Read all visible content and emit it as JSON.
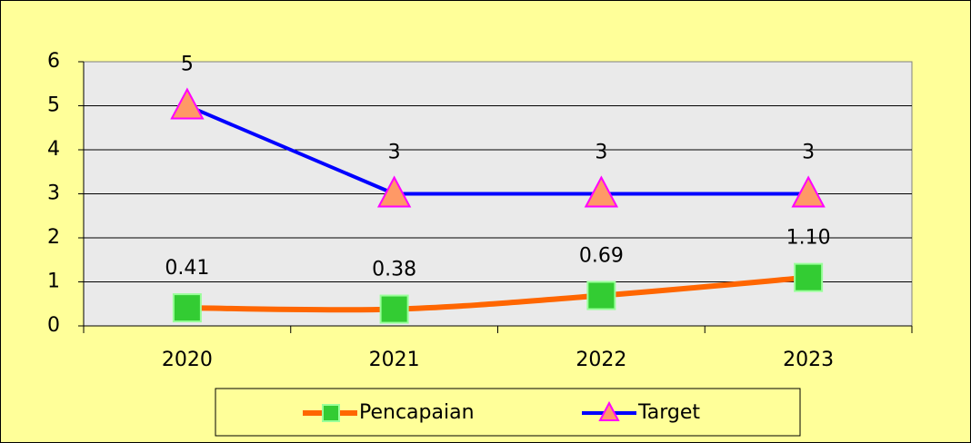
{
  "chart_data": {
    "type": "line",
    "categories": [
      "2020",
      "2021",
      "2022",
      "2023"
    ],
    "series": [
      {
        "name": "Pencapaian",
        "color": "#ff6600",
        "marker": "square",
        "marker_color": "#33cc33",
        "values": [
          0.41,
          0.38,
          0.69,
          1.1
        ],
        "value_labels": [
          "0.41",
          "0.38",
          "0.69",
          "1.10"
        ]
      },
      {
        "name": "Target",
        "color": "#0000ff",
        "marker": "triangle",
        "marker_color": "#ff9966",
        "values": [
          5,
          3,
          3,
          3
        ]
      }
    ],
    "ylim": [
      0,
      6
    ],
    "yticks": [
      0,
      1,
      2,
      3,
      4,
      5,
      6
    ],
    "grid": true,
    "legend": "bottom"
  }
}
